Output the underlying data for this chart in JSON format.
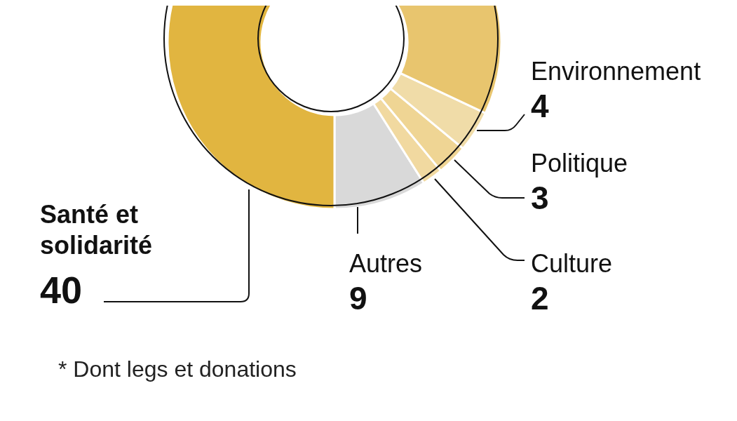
{
  "chart_data": {
    "type": "donut",
    "categories": [
      "Autres",
      "Culture",
      "Politique",
      "Environnement",
      null,
      "Santé et solidarité"
    ],
    "values": [
      9,
      2,
      3,
      4,
      42,
      40
    ],
    "colors": [
      "#d9d9d9",
      "#f1d9a0",
      "#efd594",
      "#f0dca8",
      "#e8c56e",
      "#e1b540"
    ],
    "annotations": [
      "* Dont legs et donations"
    ],
    "value_labels": [
      "9",
      "2",
      "3",
      "4",
      null,
      "40"
    ]
  }
}
